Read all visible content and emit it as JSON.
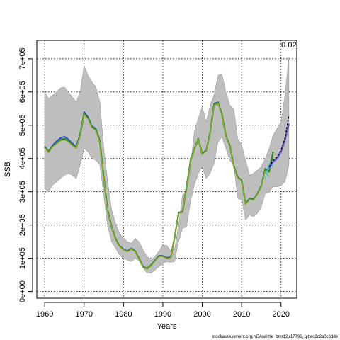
{
  "chart_data": {
    "type": "line",
    "xlabel": "Years",
    "ylabel": "SSB",
    "xlim": [
      1958,
      2024
    ],
    "ylim": [
      -20000,
      755000
    ],
    "x_ticks": [
      1960,
      1970,
      1980,
      1990,
      2000,
      2010,
      2020
    ],
    "y_ticks": [
      0,
      100000,
      200000,
      300000,
      400000,
      500000,
      600000,
      700000
    ],
    "y_tick_labels": [
      "0e+00",
      "1e+05",
      "2e+05",
      "3e+05",
      "4e+05",
      "5e+05",
      "6e+05",
      "7e+05"
    ],
    "grid": true,
    "annotation": "0.02",
    "footnote": "stockassessment.org,NEAsaithe_bmr12,r17796,,git:ec2c2a0c6dde",
    "colors": {
      "band": "#bebebe",
      "band_edge": "#9a9a9a",
      "grid": "#000000",
      "series_blue": "#1f3fd1",
      "series_teal": "#2a8a6a",
      "series_green": "#2e8b22",
      "series_olive": "#9aaf2a",
      "series_cyan": "#37c5d8",
      "series_purple": "#6a5acd",
      "series_black": "#000000"
    },
    "band": {
      "x": [
        1960,
        1961,
        1962,
        1963,
        1964,
        1965,
        1966,
        1967,
        1968,
        1969,
        1970,
        1971,
        1972,
        1973,
        1974,
        1975,
        1976,
        1977,
        1978,
        1979,
        1980,
        1981,
        1982,
        1983,
        1984,
        1985,
        1986,
        1987,
        1988,
        1989,
        1990,
        1991,
        1992,
        1993,
        1994,
        1995,
        1996,
        1997,
        1998,
        1999,
        2000,
        2001,
        2002,
        2003,
        2004,
        2005,
        2006,
        2007,
        2008,
        2009,
        2010,
        2011,
        2012,
        2013,
        2014,
        2015,
        2016,
        2017,
        2018,
        2019,
        2020,
        2021,
        2022
      ],
      "upper": [
        600000,
        580000,
        590000,
        600000,
        612000,
        615000,
        600000,
        585000,
        570000,
        600000,
        680000,
        650000,
        630000,
        615000,
        570000,
        430000,
        330000,
        245000,
        205000,
        175000,
        160000,
        150000,
        145000,
        160000,
        148000,
        125000,
        105000,
        95000,
        105000,
        122000,
        140000,
        138000,
        122000,
        128000,
        200000,
        290000,
        300000,
        375000,
        480000,
        520000,
        555000,
        510000,
        560000,
        590000,
        650000,
        655000,
        600000,
        560000,
        550000,
        460000,
        440000,
        395000,
        350000,
        355000,
        365000,
        375000,
        400000,
        430000,
        470000,
        490000,
        510000,
        590000,
        705000
      ],
      "lower": [
        310000,
        300000,
        320000,
        330000,
        340000,
        350000,
        355000,
        350000,
        340000,
        380000,
        430000,
        420000,
        400000,
        395000,
        380000,
        290000,
        195000,
        150000,
        130000,
        110000,
        100000,
        95000,
        90000,
        100000,
        92000,
        72000,
        55000,
        55000,
        65000,
        75000,
        85000,
        90000,
        88000,
        90000,
        150000,
        190000,
        195000,
        270000,
        320000,
        355000,
        375000,
        340000,
        355000,
        385000,
        450000,
        465000,
        430000,
        395000,
        380000,
        280000,
        275000,
        215000,
        230000,
        225000,
        235000,
        255000,
        295000,
        300000,
        315000,
        315000,
        318000,
        330000,
        380000
      ]
    },
    "series": [
      {
        "x": [
          1960,
          1961,
          1962,
          1963,
          1964,
          1965,
          1966,
          1967,
          1968,
          1969,
          1970,
          1971,
          1972,
          1973,
          1974,
          1975,
          1976,
          1977,
          1978,
          1979,
          1980,
          1981,
          1982,
          1983,
          1984,
          1985,
          1986,
          1987,
          1988,
          1989,
          1990,
          1991,
          1992,
          1993,
          1994,
          1995,
          1996,
          1997,
          1998,
          1999,
          2000,
          2001,
          2002,
          2003,
          2004,
          2005,
          2006,
          2007,
          2008,
          2009,
          2010,
          2011,
          2012,
          2013,
          2014,
          2015,
          2016,
          2017,
          2018
        ],
        "values": [
          437000,
          422000,
          440000,
          452000,
          462000,
          466000,
          458000,
          446000,
          436000,
          475000,
          540000,
          525000,
          498000,
          490000,
          455000,
          345000,
          245000,
          195000,
          160000,
          138000,
          128000,
          122000,
          130000,
          122000,
          100000,
          75000,
          70000,
          80000,
          95000,
          108000,
          108000,
          102000,
          104000,
          165000,
          238000,
          240000,
          315000,
          395000,
          430000,
          460000,
          415000,
          425000,
          480000,
          565000,
          570000,
          535000,
          470000,
          440000,
          380000,
          345000,
          335000,
          265000,
          280000,
          278000,
          295000,
          320000,
          370000,
          362000,
          420000
        ],
        "color_key": "series_blue",
        "width": 1.5
      },
      {
        "x": [
          1960,
          1961,
          1962,
          1963,
          1964,
          1965,
          1966,
          1967,
          1968,
          1969,
          1970,
          1971,
          1972,
          1973,
          1974,
          1975,
          1976,
          1977,
          1978,
          1979,
          1980,
          1981,
          1982,
          1983,
          1984,
          1985,
          1986,
          1987,
          1988,
          1989,
          1990,
          1991,
          1992,
          1993,
          1994,
          1995,
          1996,
          1997,
          1998,
          1999,
          2000,
          2001,
          2002,
          2003,
          2004,
          2005,
          2006,
          2007,
          2008,
          2009,
          2010,
          2011,
          2012,
          2013,
          2014,
          2015,
          2016,
          2017,
          2018
        ],
        "values": [
          435000,
          420000,
          438000,
          448000,
          458000,
          461000,
          454000,
          443000,
          434000,
          472000,
          536000,
          522000,
          496000,
          488000,
          453000,
          343000,
          243000,
          194000,
          159000,
          137000,
          127000,
          121000,
          129000,
          121000,
          99000,
          74000,
          69000,
          79000,
          94000,
          107000,
          107000,
          101000,
          103000,
          164000,
          237000,
          239000,
          314000,
          394000,
          429000,
          459000,
          414000,
          424000,
          479000,
          564000,
          569000,
          534000,
          469000,
          439000,
          379000,
          344000,
          334000,
          264000,
          279000,
          277000,
          294000,
          319000,
          369000,
          361000,
          419000
        ],
        "color_key": "series_teal",
        "width": 1.5
      },
      {
        "x": [
          1960,
          1961,
          1962,
          1963,
          1964,
          1965,
          1966,
          1967,
          1968,
          1969,
          1970,
          1971,
          1972,
          1973,
          1974,
          1975,
          1976,
          1977,
          1978,
          1979,
          1980,
          1981,
          1982,
          1983,
          1984,
          1985,
          1986,
          1987,
          1988,
          1989,
          1990,
          1991,
          1992,
          1993,
          1994,
          1995,
          1996,
          1997,
          1998,
          1999,
          2000,
          2001,
          2002,
          2003,
          2004,
          2005,
          2006,
          2007,
          2008,
          2009,
          2010,
          2011,
          2012,
          2013,
          2014,
          2015,
          2016,
          2017,
          2018
        ],
        "values": [
          434000,
          419000,
          436000,
          446000,
          455000,
          458000,
          452000,
          441000,
          432000,
          470000,
          534000,
          520000,
          494000,
          486000,
          451000,
          341000,
          241000,
          193000,
          158000,
          136000,
          126000,
          120000,
          128000,
          120000,
          98000,
          73000,
          68000,
          78000,
          93000,
          106000,
          106000,
          100000,
          102000,
          163000,
          236000,
          238000,
          313000,
          393000,
          428000,
          458000,
          413000,
          423000,
          478000,
          562000,
          567000,
          532000,
          468000,
          438000,
          378000,
          343000,
          333000,
          263000,
          278000,
          276000,
          293000,
          318000,
          368000,
          360000,
          420000
        ],
        "color_key": "series_green",
        "width": 2.2
      },
      {
        "x": [
          1960,
          1961,
          1962,
          1963,
          1964,
          1965,
          1966,
          1967,
          1968,
          1969,
          1970,
          1971,
          1972,
          1973,
          1974,
          1975,
          1976,
          1977,
          1978,
          1979,
          1980,
          1981,
          1982,
          1983,
          1984,
          1985,
          1986,
          1987,
          1988,
          1989,
          1990,
          1991,
          1992,
          1993,
          1994,
          1995,
          1996,
          1997,
          1998,
          1999,
          2000,
          2001,
          2002,
          2003,
          2004,
          2005,
          2006,
          2007,
          2008,
          2009,
          2010,
          2011,
          2012,
          2013,
          2014,
          2015,
          2016,
          2017
        ],
        "values": [
          432000,
          418000,
          435000,
          444000,
          453000,
          456000,
          450000,
          439000,
          431000,
          468000,
          532000,
          518000,
          492000,
          484000,
          449000,
          339000,
          239000,
          191000,
          156000,
          135000,
          125000,
          119000,
          127000,
          119000,
          97000,
          72000,
          67000,
          77000,
          92000,
          105000,
          105000,
          99000,
          101000,
          162000,
          235000,
          237000,
          312000,
          392000,
          427000,
          457000,
          412000,
          422000,
          477000,
          560000,
          565000,
          530000,
          466000,
          436000,
          377000,
          342000,
          332000,
          262000,
          277000,
          275000,
          292000,
          317000,
          362000,
          345000
        ],
        "color_key": "series_olive",
        "width": 1.2
      },
      {
        "x": [
          2016,
          2017,
          2018
        ],
        "values": [
          340000,
          385000,
          375000
        ],
        "color_key": "series_cyan",
        "width": 1.5
      },
      {
        "x": [
          2017,
          2018,
          2019,
          2020,
          2021,
          2022
        ],
        "values": [
          370000,
          390000,
          400000,
          420000,
          455000,
          505000
        ],
        "color_key": "series_purple",
        "width": 2.5
      },
      {
        "x": [
          2017,
          2018,
          2019,
          2020,
          2021,
          2022
        ],
        "values": [
          375000,
          395000,
          405000,
          425000,
          460000,
          530000
        ],
        "color_key": "series_black",
        "width": 1.4,
        "dashed": true
      }
    ]
  }
}
